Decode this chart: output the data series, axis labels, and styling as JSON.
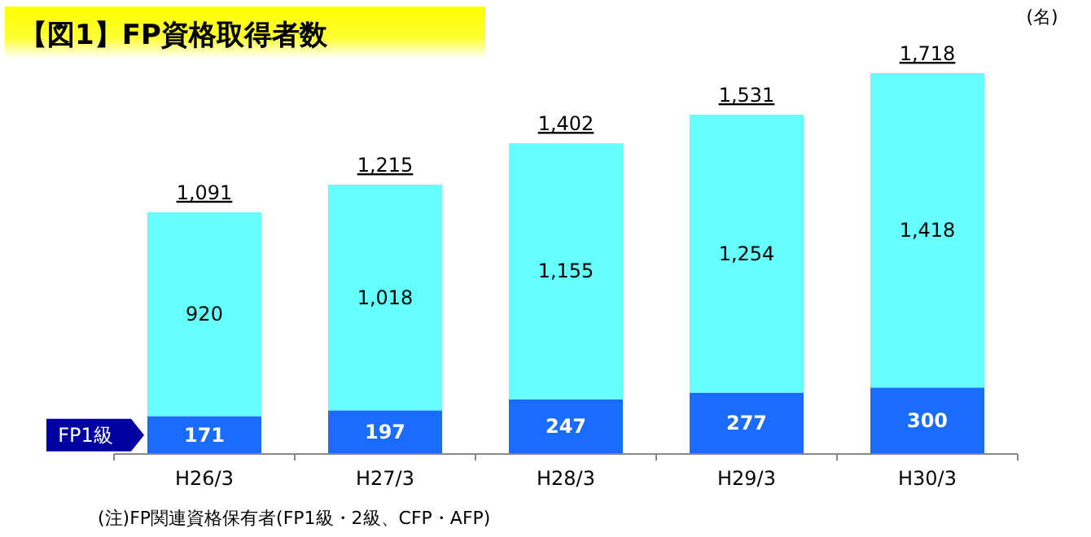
{
  "chart_data": {
    "type": "bar",
    "title": "【図1】FP資格取得者数",
    "ylabel": "(名)",
    "categories": [
      "H26/3",
      "H27/3",
      "H28/3",
      "H29/3",
      "H30/3"
    ],
    "stacked": true,
    "series": [
      {
        "name": "FP1級",
        "color": "#1a6cff",
        "values": [
          171,
          197,
          247,
          277,
          300
        ],
        "value_labels": [
          "171",
          "197",
          "247",
          "277",
          "300"
        ]
      },
      {
        "color": "#66ffff",
        "values": [
          920,
          1018,
          1155,
          1254,
          1418
        ],
        "value_labels": [
          "920",
          "1,018",
          "1,155",
          "1,254",
          "1,418"
        ]
      }
    ],
    "totals": [
      "1,091",
      "1,215",
      "1,402",
      "1,531",
      "1,718"
    ],
    "annotations": [
      "(注)FP関連資格保有者(FP1級・2級、CFP・AFP)"
    ]
  }
}
